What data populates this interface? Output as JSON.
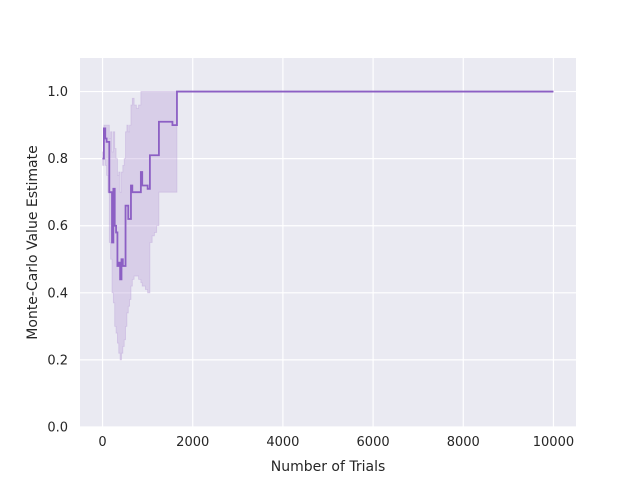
{
  "chart_data": {
    "type": "line",
    "title": "",
    "xlabel": "Number of Trials",
    "ylabel": "Monte-Carlo Value Estimate",
    "xlim": [
      -500,
      10500
    ],
    "ylim": [
      0.0,
      1.1
    ],
    "xticks": [
      0,
      2000,
      4000,
      6000,
      8000,
      10000
    ],
    "yticks": [
      0.0,
      0.2,
      0.4,
      0.6,
      0.8,
      1.0
    ],
    "xtick_labels": [
      "0",
      "2000",
      "4000",
      "6000",
      "8000",
      "10000"
    ],
    "ytick_labels": [
      "0.0",
      "0.2",
      "0.4",
      "0.6",
      "0.8",
      "1.0"
    ],
    "grid": true,
    "colors": {
      "line": "#8c5fc4",
      "band": "#b69ad8",
      "background": "#eaeaf2",
      "grid": "#ffffff"
    },
    "series": [
      {
        "x": [
          0,
          30,
          60,
          90,
          120,
          150,
          180,
          210,
          240,
          270,
          300,
          330,
          360,
          390,
          420,
          450,
          480,
          510,
          540,
          570,
          600,
          630,
          660,
          700,
          750,
          800,
          850,
          880,
          900,
          950,
          1000,
          1050,
          1100,
          1150,
          1200,
          1250,
          1300,
          1350,
          1400,
          1450,
          1500,
          1550,
          1600,
          1650,
          1700,
          2000,
          4000,
          6000,
          8000,
          10000
        ],
        "y": [
          0.8,
          0.89,
          0.86,
          0.85,
          0.85,
          0.7,
          0.7,
          0.55,
          0.71,
          0.6,
          0.58,
          0.48,
          0.49,
          0.44,
          0.5,
          0.48,
          0.48,
          0.66,
          0.66,
          0.62,
          0.62,
          0.72,
          0.7,
          0.7,
          0.7,
          0.7,
          0.76,
          0.72,
          0.72,
          0.72,
          0.71,
          0.81,
          0.81,
          0.81,
          0.81,
          0.91,
          0.91,
          0.91,
          0.91,
          0.91,
          0.91,
          0.9,
          0.9,
          1.0,
          1.0,
          1.0,
          1.0,
          1.0,
          1.0,
          1.0
        ],
        "lower": [
          0.78,
          0.8,
          0.78,
          0.75,
          0.7,
          0.55,
          0.5,
          0.4,
          0.37,
          0.3,
          0.28,
          0.25,
          0.22,
          0.2,
          0.22,
          0.24,
          0.26,
          0.3,
          0.34,
          0.36,
          0.38,
          0.42,
          0.44,
          0.45,
          0.45,
          0.44,
          0.43,
          0.42,
          0.42,
          0.41,
          0.4,
          0.55,
          0.57,
          0.58,
          0.6,
          0.7,
          0.7,
          0.7,
          0.7,
          0.7,
          0.7,
          0.7,
          0.7,
          1.0,
          1.0,
          1.0,
          1.0,
          1.0,
          1.0,
          1.0
        ],
        "upper": [
          0.82,
          0.9,
          0.9,
          0.9,
          0.9,
          0.86,
          0.88,
          0.82,
          0.88,
          0.83,
          0.8,
          0.75,
          0.76,
          0.7,
          0.76,
          0.78,
          0.8,
          0.88,
          0.9,
          0.88,
          0.9,
          0.96,
          0.98,
          0.96,
          0.95,
          0.96,
          1.0,
          1.0,
          1.0,
          1.0,
          1.0,
          1.0,
          1.0,
          1.0,
          1.0,
          1.0,
          1.0,
          1.0,
          1.0,
          1.0,
          1.0,
          1.0,
          1.0,
          1.0,
          1.0,
          1.0,
          1.0,
          1.0,
          1.0,
          1.0
        ]
      }
    ]
  }
}
